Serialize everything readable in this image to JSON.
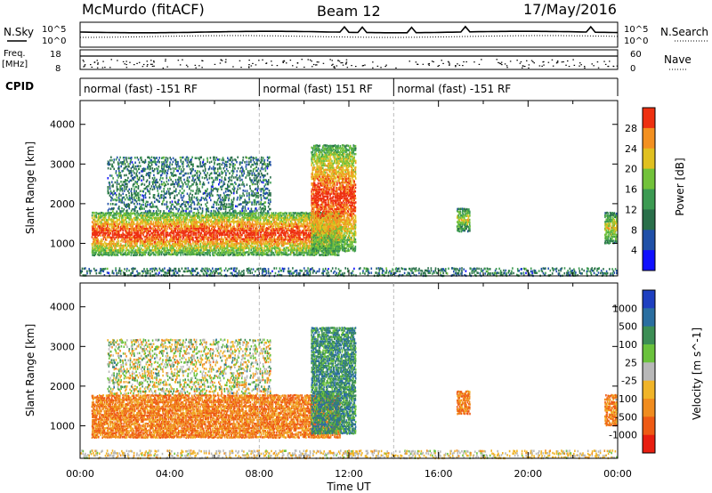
{
  "header": {
    "station": "McMurdo (fitACF)",
    "beam": "Beam 12",
    "date": "17/May/2016"
  },
  "noise_panel": {
    "left_label": "N.Sky",
    "right_label": "N.Search",
    "left_ticks": [
      "10^5",
      "10^0"
    ],
    "right_ticks": [
      "10^5",
      "10^0"
    ]
  },
  "freq_panel": {
    "left_label_line1": "Freq.",
    "left_label_line2": "[MHz]",
    "right_label": "Nave",
    "left_ticks": [
      "18",
      "8"
    ],
    "right_ticks": [
      "60",
      "0"
    ]
  },
  "cpid": {
    "label": "CPID",
    "segments": [
      {
        "start_hour": 0,
        "end_hour": 8,
        "text": "normal (fast) -151 RF"
      },
      {
        "start_hour": 8,
        "end_hour": 14,
        "text": "normal (fast) 151 RF"
      },
      {
        "start_hour": 14,
        "end_hour": 24,
        "text": "normal (fast) -151 RF"
      }
    ]
  },
  "chart_data": [
    {
      "type": "heatmap",
      "name": "power",
      "ylabel": "Slant Range [km]",
      "xlim": [
        0,
        24
      ],
      "ylim": [
        180,
        4600
      ],
      "yticks": [
        1000,
        2000,
        3000,
        4000
      ],
      "colorbar": {
        "label": "Power [dB]",
        "ticks": [
          "4",
          "8",
          "12",
          "16",
          "20",
          "24",
          "28"
        ],
        "colors": [
          "#1010ff",
          "#2050a8",
          "#2a6f4a",
          "#3c9a52",
          "#72c23a",
          "#e0c020",
          "#f39020",
          "#ee3010"
        ]
      },
      "echo_regions": [
        {
          "t": [
            0.5,
            11.6
          ],
          "range_km": [
            700,
            1800
          ],
          "level": "strong"
        },
        {
          "t": [
            1.2,
            8.5
          ],
          "range_km": [
            1800,
            3200
          ],
          "level": "weak"
        },
        {
          "t": [
            10.3,
            12.3
          ],
          "range_km": [
            800,
            3500
          ],
          "level": "strong"
        },
        {
          "t": [
            16.8,
            17.4
          ],
          "range_km": [
            1300,
            1900
          ],
          "level": "moderate"
        },
        {
          "t": [
            23.4,
            24.0
          ],
          "range_km": [
            1000,
            1800
          ],
          "level": "moderate"
        },
        {
          "t": [
            0,
            24
          ],
          "range_km": [
            180,
            400
          ],
          "level": "weak"
        }
      ]
    },
    {
      "type": "heatmap",
      "name": "velocity",
      "ylabel": "Slant Range [km]",
      "xlabel": "Time UT",
      "xlim": [
        0,
        24
      ],
      "xticks": [
        "00:00",
        "04:00",
        "08:00",
        "12:00",
        "16:00",
        "20:00",
        "00:00"
      ],
      "ylim": [
        180,
        4600
      ],
      "yticks": [
        1000,
        2000,
        3000,
        4000
      ],
      "colorbar": {
        "label": "Velocity [m s^-1]",
        "ticks": [
          "1000",
          "500",
          "100",
          "25",
          "-25",
          "-100",
          "-500",
          "-1000"
        ],
        "colors": [
          "#1e3fc0",
          "#2a6ea0",
          "#3c8e55",
          "#6ac23c",
          "#b8b8b8",
          "#f0b428",
          "#f08c1e",
          "#ee5a14",
          "#e81e10"
        ]
      },
      "echo_regions": [
        {
          "t": [
            0.5,
            11.6
          ],
          "range_km": [
            700,
            1800
          ],
          "flow": "away"
        },
        {
          "t": [
            1.2,
            8.5
          ],
          "range_km": [
            1800,
            3200
          ],
          "flow": "mixed"
        },
        {
          "t": [
            10.3,
            12.3
          ],
          "range_km": [
            800,
            3500
          ],
          "flow": "toward"
        },
        {
          "t": [
            16.8,
            17.4
          ],
          "range_km": [
            1300,
            1900
          ],
          "flow": "away"
        },
        {
          "t": [
            23.4,
            24.0
          ],
          "range_km": [
            1000,
            1800
          ],
          "flow": "away"
        },
        {
          "t": [
            0,
            24
          ],
          "range_km": [
            180,
            400
          ],
          "flow": "near-zero"
        }
      ]
    }
  ]
}
